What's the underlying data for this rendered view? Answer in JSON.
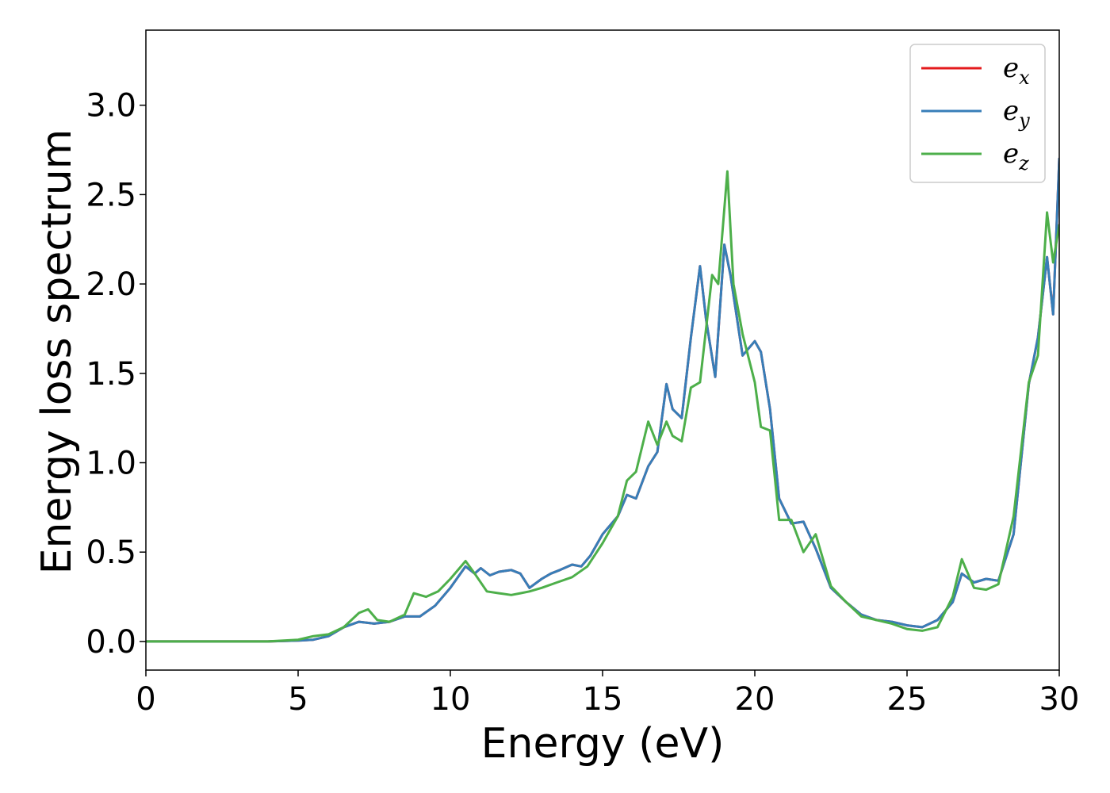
{
  "chart_data": {
    "type": "line",
    "title": "",
    "xlabel": "Energy (eV)",
    "ylabel": "Energy loss spectrum",
    "xlim": [
      0,
      30
    ],
    "ylim": [
      -0.16,
      3.42
    ],
    "xticks": [
      0,
      5,
      10,
      15,
      20,
      25,
      30
    ],
    "yticks": [
      0.0,
      0.5,
      1.0,
      1.5,
      2.0,
      2.5,
      3.0
    ],
    "xtick_labels": [
      "0",
      "5",
      "10",
      "15",
      "20",
      "25",
      "30"
    ],
    "ytick_labels": [
      "0.0",
      "0.5",
      "1.0",
      "1.5",
      "2.0",
      "2.5",
      "3.0"
    ],
    "grid": false,
    "legend_position": "top-right",
    "series": [
      {
        "name": "e_x",
        "label_base": "e",
        "label_sub": "x",
        "color": "#e41a1c",
        "x": [
          0,
          4,
          5,
          5.5,
          6,
          6.5,
          7,
          7.5,
          8,
          8.5,
          9,
          9.5,
          10,
          10.5,
          10.8,
          11,
          11.3,
          11.6,
          12,
          12.3,
          12.6,
          13,
          13.3,
          13.6,
          14,
          14.3,
          14.6,
          15,
          15.5,
          15.8,
          16.1,
          16.5,
          16.8,
          17.1,
          17.3,
          17.6,
          17.9,
          18.2,
          18.4,
          18.7,
          19.0,
          19.2,
          19.6,
          20.0,
          20.2,
          20.5,
          20.8,
          21.2,
          21.6,
          22.0,
          22.5,
          23.0,
          23.5,
          24.0,
          24.5,
          25.0,
          25.5,
          26.0,
          26.5,
          26.8,
          27.2,
          27.6,
          28.0,
          28.5,
          29.0,
          29.3,
          29.6,
          29.8,
          30.0
        ],
        "y": [
          0.0,
          0.0,
          0.005,
          0.01,
          0.03,
          0.08,
          0.11,
          0.1,
          0.11,
          0.14,
          0.14,
          0.2,
          0.3,
          0.42,
          0.38,
          0.41,
          0.37,
          0.39,
          0.4,
          0.38,
          0.3,
          0.35,
          0.38,
          0.4,
          0.43,
          0.42,
          0.48,
          0.6,
          0.7,
          0.82,
          0.8,
          0.98,
          1.06,
          1.44,
          1.3,
          1.25,
          1.7,
          2.1,
          1.8,
          1.48,
          2.22,
          2.05,
          1.6,
          1.68,
          1.62,
          1.3,
          0.8,
          0.66,
          0.67,
          0.52,
          0.3,
          0.22,
          0.15,
          0.12,
          0.11,
          0.09,
          0.08,
          0.12,
          0.22,
          0.38,
          0.33,
          0.35,
          0.34,
          0.6,
          1.44,
          1.7,
          2.15,
          1.83,
          2.7
        ]
      },
      {
        "name": "e_y",
        "label_base": "e",
        "label_sub": "y",
        "color": "#377eb8",
        "x": [
          0,
          4,
          5,
          5.5,
          6,
          6.5,
          7,
          7.5,
          8,
          8.5,
          9,
          9.5,
          10,
          10.5,
          10.8,
          11,
          11.3,
          11.6,
          12,
          12.3,
          12.6,
          13,
          13.3,
          13.6,
          14,
          14.3,
          14.6,
          15,
          15.5,
          15.8,
          16.1,
          16.5,
          16.8,
          17.1,
          17.3,
          17.6,
          17.9,
          18.2,
          18.4,
          18.7,
          19.0,
          19.2,
          19.6,
          20.0,
          20.2,
          20.5,
          20.8,
          21.2,
          21.6,
          22.0,
          22.5,
          23.0,
          23.5,
          24.0,
          24.5,
          25.0,
          25.5,
          26.0,
          26.5,
          26.8,
          27.2,
          27.6,
          28.0,
          28.5,
          29.0,
          29.3,
          29.6,
          29.8,
          30.0
        ],
        "y": [
          0.0,
          0.0,
          0.005,
          0.01,
          0.03,
          0.08,
          0.11,
          0.1,
          0.11,
          0.14,
          0.14,
          0.2,
          0.3,
          0.42,
          0.38,
          0.41,
          0.37,
          0.39,
          0.4,
          0.38,
          0.3,
          0.35,
          0.38,
          0.4,
          0.43,
          0.42,
          0.48,
          0.6,
          0.7,
          0.82,
          0.8,
          0.98,
          1.06,
          1.44,
          1.3,
          1.25,
          1.7,
          2.1,
          1.8,
          1.48,
          2.22,
          2.05,
          1.6,
          1.68,
          1.62,
          1.3,
          0.8,
          0.66,
          0.67,
          0.52,
          0.3,
          0.22,
          0.15,
          0.12,
          0.11,
          0.09,
          0.08,
          0.12,
          0.22,
          0.38,
          0.33,
          0.35,
          0.34,
          0.6,
          1.44,
          1.7,
          2.15,
          1.83,
          2.7
        ]
      },
      {
        "name": "e_z",
        "label_base": "e",
        "label_sub": "z",
        "color": "#4daf4a",
        "x": [
          0,
          4,
          5,
          5.5,
          6,
          6.5,
          7,
          7.3,
          7.6,
          8,
          8.5,
          8.8,
          9.2,
          9.6,
          10,
          10.5,
          10.8,
          11.2,
          11.6,
          12,
          12.3,
          12.6,
          13,
          13.5,
          14,
          14.5,
          15,
          15.5,
          15.8,
          16.1,
          16.5,
          16.8,
          17.1,
          17.3,
          17.6,
          17.9,
          18.2,
          18.6,
          18.8,
          19.1,
          19.3,
          19.6,
          20.0,
          20.2,
          20.5,
          20.8,
          21.2,
          21.6,
          22.0,
          22.5,
          23.0,
          23.5,
          24.0,
          24.5,
          25.0,
          25.5,
          26.0,
          26.5,
          26.8,
          27.2,
          27.6,
          28.0,
          28.5,
          29.0,
          29.3,
          29.6,
          29.8,
          30.0
        ],
        "y": [
          0.0,
          0.0,
          0.01,
          0.03,
          0.04,
          0.08,
          0.16,
          0.18,
          0.12,
          0.11,
          0.15,
          0.27,
          0.25,
          0.28,
          0.35,
          0.45,
          0.38,
          0.28,
          0.27,
          0.26,
          0.27,
          0.28,
          0.3,
          0.33,
          0.36,
          0.42,
          0.55,
          0.7,
          0.9,
          0.95,
          1.23,
          1.1,
          1.23,
          1.15,
          1.12,
          1.42,
          1.45,
          2.05,
          2.0,
          2.63,
          2.0,
          1.72,
          1.45,
          1.2,
          1.18,
          0.68,
          0.68,
          0.5,
          0.6,
          0.31,
          0.22,
          0.14,
          0.12,
          0.1,
          0.07,
          0.06,
          0.08,
          0.25,
          0.46,
          0.3,
          0.29,
          0.32,
          0.7,
          1.45,
          1.6,
          2.4,
          2.12,
          2.33
        ]
      }
    ]
  }
}
